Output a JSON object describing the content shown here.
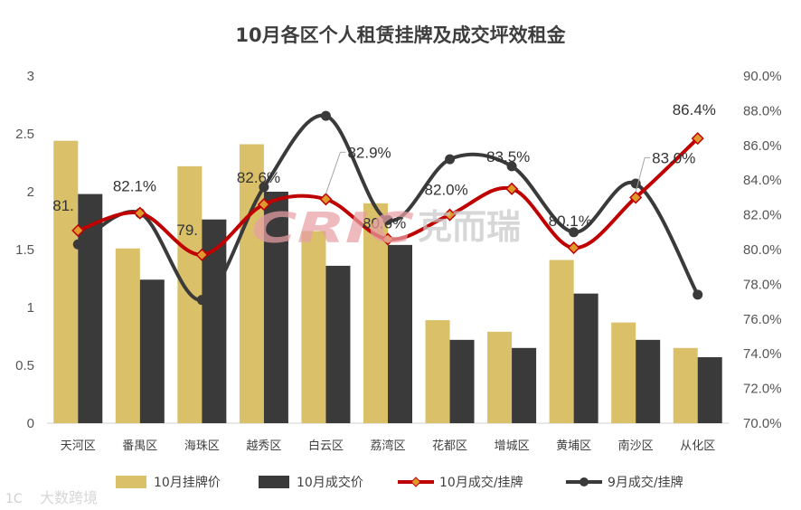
{
  "chart_data": {
    "type": "bar+line",
    "title": "10月各区个人租赁挂牌及成交坪效租金",
    "categories": [
      "天河区",
      "番禺区",
      "海珠区",
      "越秀区",
      "白云区",
      "荔湾区",
      "花都区",
      "增城区",
      "黄埔区",
      "南沙区",
      "从化区"
    ],
    "y_left": {
      "min": 0,
      "max": 3,
      "ticks": [
        "0",
        "0.5",
        "1",
        "1.5",
        "2",
        "2.5",
        "3"
      ]
    },
    "y_right": {
      "min": 70,
      "max": 90,
      "ticks": [
        "70.0%",
        "72.0%",
        "74.0%",
        "76.0%",
        "78.0%",
        "80.0%",
        "82.0%",
        "84.0%",
        "86.0%",
        "88.0%",
        "90.0%"
      ]
    },
    "series": [
      {
        "name": "10月挂牌价",
        "kind": "bar",
        "axis": "left",
        "color": "#D9C069",
        "values": [
          2.44,
          1.51,
          2.22,
          2.41,
          1.66,
          1.9,
          0.89,
          0.79,
          1.41,
          0.87,
          0.65
        ]
      },
      {
        "name": "10月成交价",
        "kind": "bar",
        "axis": "left",
        "color": "#3A3A3A",
        "values": [
          1.98,
          1.24,
          1.76,
          2.0,
          1.36,
          1.54,
          0.72,
          0.65,
          1.12,
          0.72,
          0.57
        ]
      },
      {
        "name": "10月成交/挂牌",
        "kind": "line",
        "axis": "right",
        "color": "#C00000",
        "marker": "diamond",
        "values": [
          81.1,
          82.1,
          79.7,
          82.6,
          82.9,
          80.6,
          82.0,
          83.5,
          80.1,
          83.0,
          86.4
        ]
      },
      {
        "name": "9月成交/挂牌",
        "kind": "line",
        "axis": "right",
        "color": "#3A3A3A",
        "marker": "circle",
        "values": [
          80.3,
          82.1,
          77.1,
          83.6,
          87.7,
          81.7,
          85.2,
          84.8,
          81.0,
          83.8,
          77.4
        ]
      }
    ],
    "data_labels": [
      {
        "index": 0,
        "text": "81."
      },
      {
        "index": 1,
        "text": "82.1%"
      },
      {
        "index": 2,
        "text": "79."
      },
      {
        "index": 3,
        "text": "82.6%"
      },
      {
        "index": 4,
        "text": "82.9%",
        "leader": true
      },
      {
        "index": 5,
        "text": "80.6%"
      },
      {
        "index": 6,
        "text": "82.0%"
      },
      {
        "index": 7,
        "text": "83.5%"
      },
      {
        "index": 8,
        "text": "80.1%"
      },
      {
        "index": 9,
        "text": "83.0%",
        "leader": true
      },
      {
        "index": 10,
        "text": "86.4%"
      }
    ],
    "legend": {
      "position": "bottom"
    },
    "grid": false
  },
  "watermarks": {
    "center_logo_letters": "CRIC",
    "center_logo_cn": "克而瑞",
    "corner_logo": "大数跨境",
    "corner_mark": "1C"
  }
}
